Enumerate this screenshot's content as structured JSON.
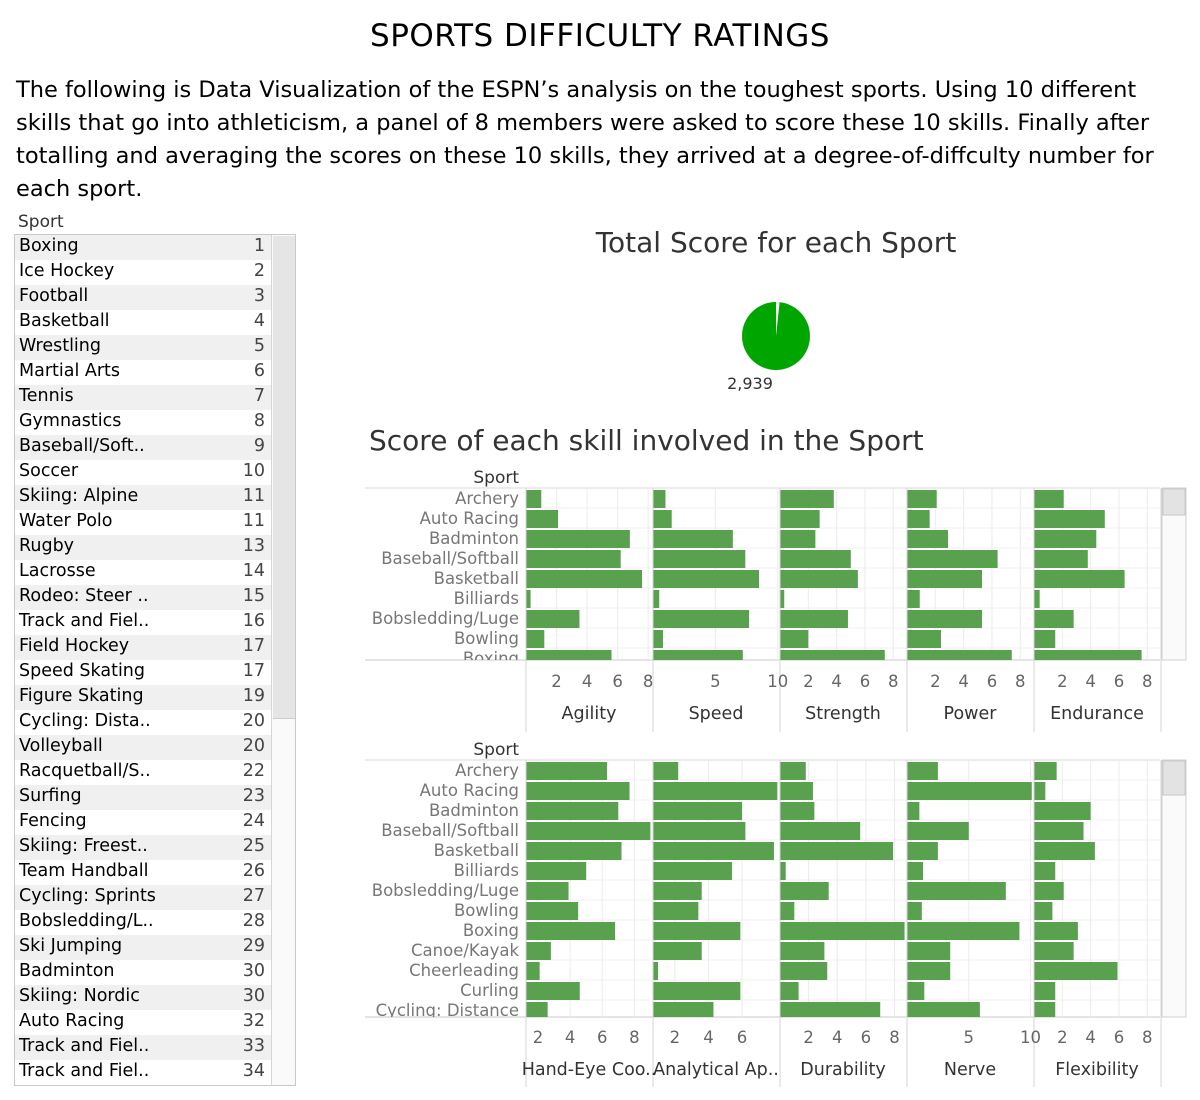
{
  "title": "SPORTS DIFFICULTY RATINGS",
  "intro": "The following is Data Visualization of the ESPN’s analysis on the toughest sports. Using 10 different skills that go into athleticism, a panel of 8 members were asked to score these 10 skills.  Finally after totalling and averaging the scores on these 10 skills, they arrived at a degree-of-diffculty number for each sport.",
  "ranking": {
    "header": "Sport",
    "rows": [
      {
        "sport": "Boxing",
        "rank": "1"
      },
      {
        "sport": "Ice Hockey",
        "rank": "2"
      },
      {
        "sport": "Football",
        "rank": "3"
      },
      {
        "sport": "Basketball",
        "rank": "4"
      },
      {
        "sport": "Wrestling",
        "rank": "5"
      },
      {
        "sport": "Martial Arts",
        "rank": "6"
      },
      {
        "sport": "Tennis",
        "rank": "7"
      },
      {
        "sport": "Gymnastics",
        "rank": "8"
      },
      {
        "sport": "Baseball/Soft..",
        "rank": "9"
      },
      {
        "sport": "Soccer",
        "rank": "10"
      },
      {
        "sport": "Skiing: Alpine",
        "rank": "11"
      },
      {
        "sport": "Water Polo",
        "rank": "11"
      },
      {
        "sport": "Rugby",
        "rank": "13"
      },
      {
        "sport": "Lacrosse",
        "rank": "14"
      },
      {
        "sport": "Rodeo: Steer ..",
        "rank": "15"
      },
      {
        "sport": "Track and Fiel..",
        "rank": "16"
      },
      {
        "sport": "Field Hockey",
        "rank": "17"
      },
      {
        "sport": "Speed Skating",
        "rank": "17"
      },
      {
        "sport": "Figure Skating",
        "rank": "19"
      },
      {
        "sport": "Cycling: Dista..",
        "rank": "20"
      },
      {
        "sport": "Volleyball",
        "rank": "20"
      },
      {
        "sport": "Racquetball/S..",
        "rank": "22"
      },
      {
        "sport": "Surfing",
        "rank": "23"
      },
      {
        "sport": "Fencing",
        "rank": "24"
      },
      {
        "sport": "Skiing: Freest..",
        "rank": "25"
      },
      {
        "sport": "Team Handball",
        "rank": "26"
      },
      {
        "sport": "Cycling: Sprints",
        "rank": "27"
      },
      {
        "sport": "Bobsledding/L..",
        "rank": "28"
      },
      {
        "sport": "Ski Jumping",
        "rank": "29"
      },
      {
        "sport": "Badminton",
        "rank": "30"
      },
      {
        "sport": "Skiing: Nordic",
        "rank": "30"
      },
      {
        "sport": "Auto Racing",
        "rank": "32"
      },
      {
        "sport": "Track and Fiel..",
        "rank": "33"
      },
      {
        "sport": "Track and Fiel..",
        "rank": "34"
      }
    ]
  },
  "colors": {
    "bar": "#59a14f",
    "pie": "#00a500",
    "pie_slice": "#ffffff"
  },
  "chart_data": [
    {
      "type": "pie",
      "title": "Total Score for each Sport",
      "label": "2,939",
      "value": 2939,
      "slice_fraction": 0.017
    },
    {
      "type": "bar",
      "orientation": "horizontal",
      "title": "Score of each skill involved in the Sport",
      "row_header": "Sport",
      "categories": [
        "Archery",
        "Auto Racing",
        "Badminton",
        "Baseball/Softball",
        "Basketball",
        "Billiards",
        "Bobsledding/Luge",
        "Bowling",
        "Boxing"
      ],
      "panels": [
        {
          "name": "Agility",
          "xlim": [
            0,
            8.25
          ],
          "ticks": [
            "2",
            "4",
            "6",
            "8"
          ],
          "tick_values": [
            2,
            4,
            6,
            8
          ],
          "values": [
            1.0,
            2.1,
            6.8,
            6.2,
            7.6,
            0.3,
            3.5,
            1.2,
            5.6
          ]
        },
        {
          "name": "Speed",
          "xlim": [
            0,
            10.1
          ],
          "ticks": [
            "5",
            "10"
          ],
          "tick_values": [
            5,
            10
          ],
          "values": [
            1.0,
            1.5,
            6.4,
            7.4,
            8.5,
            0.5,
            7.7,
            0.8,
            7.2
          ]
        },
        {
          "name": "Strength",
          "xlim": [
            0,
            8.9
          ],
          "ticks": [
            "2",
            "4",
            "6",
            "8"
          ],
          "tick_values": [
            2,
            4,
            6,
            8
          ],
          "values": [
            3.8,
            2.8,
            2.5,
            5.0,
            5.5,
            0.3,
            4.8,
            2.0,
            7.4
          ]
        },
        {
          "name": "Power",
          "xlim": [
            0,
            8.9
          ],
          "ticks": [
            "2",
            "4",
            "6",
            "8"
          ],
          "tick_values": [
            2,
            4,
            6,
            8
          ],
          "values": [
            2.1,
            1.6,
            2.9,
            6.4,
            5.3,
            0.9,
            5.3,
            2.4,
            7.4
          ]
        },
        {
          "name": "Endurance",
          "xlim": [
            0,
            8.9
          ],
          "ticks": [
            "2",
            "4",
            "6",
            "8"
          ],
          "tick_values": [
            2,
            4,
            6,
            8
          ],
          "values": [
            2.1,
            5.0,
            4.4,
            3.8,
            6.4,
            0.4,
            2.8,
            1.5,
            7.6
          ]
        }
      ]
    },
    {
      "type": "bar",
      "orientation": "horizontal",
      "row_header": "Sport",
      "categories": [
        "Archery",
        "Auto Racing",
        "Badminton",
        "Baseball/Softball",
        "Basketball",
        "Billiards",
        "Bobsledding/Luge",
        "Bowling",
        "Boxing",
        "Canoe/Kayak",
        "Cheerleading",
        "Curling",
        "Cycling: Distance"
      ],
      "panels": [
        {
          "name": "Hand-Eye Coo..",
          "xlim": [
            1.25,
            9.1
          ],
          "ticks": [
            "2",
            "4",
            "6",
            "8"
          ],
          "tick_values": [
            2,
            4,
            6,
            8
          ],
          "values": [
            6.3,
            7.7,
            7.0,
            9.0,
            7.2,
            5.0,
            3.9,
            4.5,
            6.8,
            2.8,
            2.1,
            4.6,
            2.6
          ]
        },
        {
          "name": "Analytical Ap..",
          "xlim": [
            0.7,
            8.2
          ],
          "ticks": [
            "2",
            "4",
            "6"
          ],
          "tick_values": [
            2,
            4,
            6
          ],
          "values": [
            2.2,
            8.1,
            6.0,
            6.2,
            7.9,
            5.4,
            3.6,
            3.4,
            5.9,
            3.6,
            1.0,
            5.9,
            4.3
          ]
        },
        {
          "name": "Durability",
          "xlim": [
            0,
            8.8
          ],
          "ticks": [
            "2",
            "4",
            "6",
            "8"
          ],
          "tick_values": [
            2,
            4,
            6,
            8
          ],
          "values": [
            1.8,
            2.3,
            2.4,
            5.6,
            7.9,
            0.4,
            3.4,
            1.0,
            8.7,
            3.1,
            3.3,
            1.3,
            7.0
          ]
        },
        {
          "name": "Nerve",
          "xlim": [
            0,
            10.2
          ],
          "ticks": [
            "5",
            "10"
          ],
          "tick_values": [
            5,
            10
          ],
          "values": [
            2.5,
            10.1,
            1.0,
            5.0,
            2.5,
            1.3,
            8.0,
            1.2,
            9.1,
            3.5,
            3.5,
            1.4,
            5.9
          ]
        },
        {
          "name": "Flexibility",
          "xlim": [
            0,
            8.9
          ],
          "ticks": [
            "2",
            "4",
            "6",
            "8"
          ],
          "tick_values": [
            2,
            4,
            6,
            8
          ],
          "values": [
            1.6,
            0.8,
            4.0,
            3.5,
            4.3,
            1.5,
            2.1,
            1.3,
            3.1,
            2.8,
            5.9,
            1.5,
            1.5
          ]
        }
      ]
    }
  ]
}
